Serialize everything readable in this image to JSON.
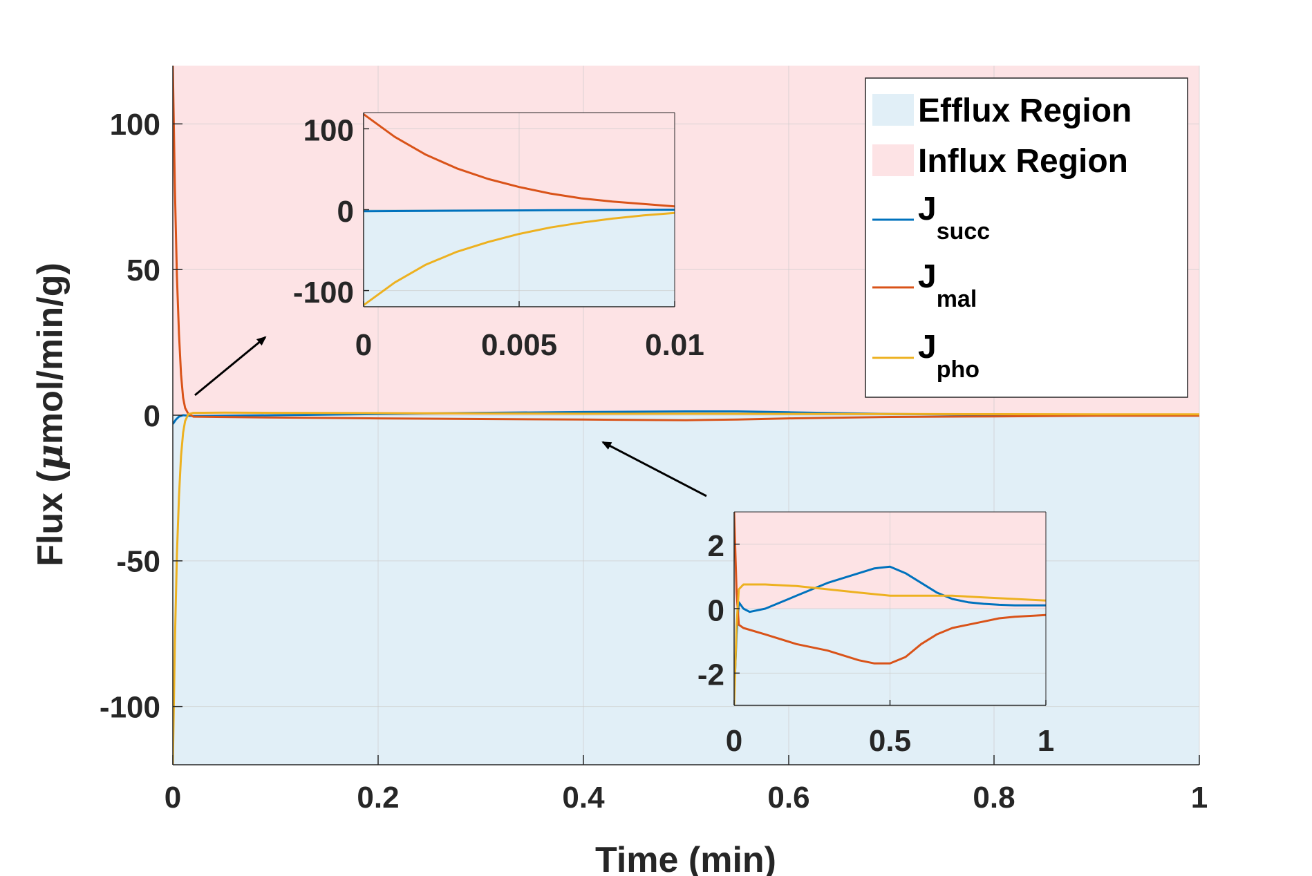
{
  "chart_data": [
    {
      "id": "main",
      "type": "line",
      "xlabel": "Time (min)",
      "ylabel_main": "Flux (",
      "ylabel_mu": "μ",
      "ylabel_rest": "mol/min/g)",
      "xlim": [
        0,
        1
      ],
      "ylim": [
        -120,
        120
      ],
      "xticks": [
        0,
        0.2,
        0.4,
        0.6,
        0.8,
        1
      ],
      "xtick_labels": [
        "0",
        "0.2",
        "0.4",
        "0.6",
        "0.8",
        "1"
      ],
      "yticks": [
        -100,
        -50,
        0,
        50,
        100
      ],
      "ytick_labels": [
        "-100",
        "-50",
        "0",
        "50",
        "100"
      ],
      "grid": true,
      "regions": [
        {
          "name": "Efflux Region",
          "y_range": [
            -120,
            0
          ],
          "color": "#e1eff7"
        },
        {
          "name": "Influx Region",
          "y_range": [
            0,
            120
          ],
          "color": "#fde3e5"
        }
      ],
      "legend": {
        "placement": "top-right",
        "entries": [
          {
            "label": "Efflux Region",
            "kind": "patch",
            "color": "#e1eff7"
          },
          {
            "label": "Influx Region",
            "kind": "patch",
            "color": "#fde3e5"
          },
          {
            "label": "J",
            "subscript": "succ",
            "kind": "line",
            "color": "#0072bd"
          },
          {
            "label": "J",
            "subscript": "mal",
            "kind": "line",
            "color": "#d95319"
          },
          {
            "label": "J",
            "subscript": "pho",
            "kind": "line",
            "color": "#edb120"
          }
        ]
      },
      "series": [
        {
          "name": "J_succ",
          "color": "#0072bd",
          "x": [
            0,
            0.003,
            0.006,
            0.01,
            0.02,
            0.05,
            0.1,
            0.2,
            0.3,
            0.4,
            0.5,
            0.55,
            0.6,
            0.7,
            0.8,
            0.9,
            1.0
          ],
          "y": [
            -3,
            -1.5,
            -0.5,
            0.0,
            -0.3,
            -0.2,
            0.0,
            0.4,
            0.8,
            1.1,
            1.3,
            1.3,
            1.0,
            0.4,
            0.2,
            0.15,
            0.1
          ]
        },
        {
          "name": "J_mal",
          "color": "#d95319",
          "x": [
            0,
            0.002,
            0.004,
            0.006,
            0.008,
            0.01,
            0.012,
            0.015,
            0.02,
            0.1,
            0.2,
            0.3,
            0.4,
            0.5,
            0.55,
            0.6,
            0.7,
            0.8,
            0.9,
            1.0
          ],
          "y": [
            120,
            78,
            48,
            28,
            14,
            6,
            2.5,
            0.5,
            -0.5,
            -0.8,
            -1.1,
            -1.3,
            -1.5,
            -1.7,
            -1.5,
            -1.1,
            -0.6,
            -0.4,
            -0.2,
            -0.2
          ]
        },
        {
          "name": "J_pho",
          "color": "#edb120",
          "x": [
            0,
            0.002,
            0.004,
            0.006,
            0.008,
            0.01,
            0.012,
            0.015,
            0.02,
            0.05,
            0.1,
            0.2,
            0.3,
            0.4,
            0.5,
            0.6,
            0.7,
            0.8,
            0.9,
            1.0
          ],
          "y": [
            -120,
            -78,
            -48,
            -28,
            -14,
            -6,
            -2,
            0.3,
            0.8,
            0.9,
            0.8,
            0.7,
            0.6,
            0.5,
            0.5,
            0.45,
            0.4,
            0.35,
            0.3,
            0.3
          ]
        }
      ]
    },
    {
      "id": "inset-early",
      "type": "line",
      "xlim": [
        0,
        0.01
      ],
      "ylim": [
        -120,
        120
      ],
      "xticks": [
        0,
        0.005,
        0.01
      ],
      "xtick_labels": [
        "0",
        "0.005",
        "0.01"
      ],
      "yticks": [
        -100,
        0,
        100
      ],
      "ytick_labels": [
        "-100",
        "0",
        "100"
      ],
      "grid": true,
      "series": [
        {
          "name": "J_succ",
          "color": "#0072bd",
          "x": [
            0,
            0.002,
            0.004,
            0.006,
            0.008,
            0.01
          ],
          "y": [
            -2,
            -1.5,
            -1,
            -0.7,
            -0.3,
            0
          ]
        },
        {
          "name": "J_mal",
          "color": "#d95319",
          "x": [
            0,
            0.001,
            0.002,
            0.003,
            0.004,
            0.005,
            0.006,
            0.007,
            0.008,
            0.009,
            0.01
          ],
          "y": [
            118,
            90,
            68,
            51,
            38,
            28,
            20,
            14,
            10,
            7,
            4
          ]
        },
        {
          "name": "J_pho",
          "color": "#edb120",
          "x": [
            0,
            0.001,
            0.002,
            0.003,
            0.004,
            0.005,
            0.006,
            0.007,
            0.008,
            0.009,
            0.01
          ],
          "y": [
            -118,
            -90,
            -68,
            -52,
            -40,
            -30,
            -22,
            -16,
            -11,
            -7,
            -4
          ]
        }
      ]
    },
    {
      "id": "inset-zoom",
      "type": "line",
      "xlim": [
        0,
        1
      ],
      "ylim": [
        -3,
        3
      ],
      "xticks": [
        0,
        0.5,
        1
      ],
      "xtick_labels": [
        "0",
        "0.5",
        "1"
      ],
      "yticks": [
        -2,
        0,
        2
      ],
      "ytick_labels": [
        "-2",
        "0",
        "2"
      ],
      "grid": true,
      "series": [
        {
          "name": "J_succ",
          "color": "#0072bd",
          "x": [
            0,
            0.008,
            0.015,
            0.03,
            0.05,
            0.1,
            0.2,
            0.3,
            0.4,
            0.45,
            0.5,
            0.55,
            0.6,
            0.65,
            0.7,
            0.75,
            0.8,
            0.85,
            0.9,
            1.0
          ],
          "y": [
            -2.7,
            -0.8,
            0.2,
            0.0,
            -0.1,
            0.0,
            0.4,
            0.8,
            1.1,
            1.25,
            1.3,
            1.1,
            0.8,
            0.5,
            0.3,
            0.2,
            0.15,
            0.12,
            0.1,
            0.1
          ]
        },
        {
          "name": "J_mal",
          "color": "#d95319",
          "x": [
            0,
            0.008,
            0.015,
            0.03,
            0.1,
            0.2,
            0.3,
            0.4,
            0.45,
            0.5,
            0.55,
            0.6,
            0.65,
            0.7,
            0.75,
            0.8,
            0.85,
            0.9,
            1.0
          ],
          "y": [
            3,
            0.5,
            -0.5,
            -0.6,
            -0.8,
            -1.1,
            -1.3,
            -1.6,
            -1.7,
            -1.7,
            -1.5,
            -1.1,
            -0.8,
            -0.6,
            -0.5,
            -0.4,
            -0.3,
            -0.25,
            -0.2
          ]
        },
        {
          "name": "J_pho",
          "color": "#edb120",
          "x": [
            0,
            0.008,
            0.015,
            0.03,
            0.05,
            0.1,
            0.2,
            0.3,
            0.4,
            0.5,
            0.6,
            0.7,
            0.8,
            0.9,
            1.0
          ],
          "y": [
            -3,
            -0.5,
            0.6,
            0.75,
            0.75,
            0.75,
            0.7,
            0.6,
            0.5,
            0.4,
            0.4,
            0.4,
            0.35,
            0.3,
            0.25
          ]
        }
      ]
    }
  ]
}
